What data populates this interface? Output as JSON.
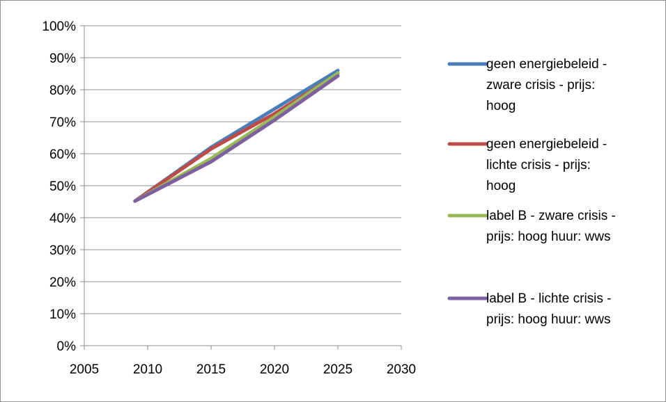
{
  "chart_data": {
    "type": "line",
    "x_axis": {
      "min": 2005,
      "max": 2030,
      "ticks": [
        2005,
        2010,
        2015,
        2020,
        2025,
        2030
      ],
      "tick_labels": [
        "2005",
        "2010",
        "2015",
        "2020",
        "2025",
        "2030"
      ]
    },
    "y_axis": {
      "min": 0,
      "max": 1,
      "ticks": [
        0,
        0.1,
        0.2,
        0.3,
        0.4,
        0.5,
        0.6,
        0.7,
        0.8,
        0.9,
        1
      ],
      "tick_labels": [
        "0%",
        "10%",
        "20%",
        "30%",
        "40%",
        "50%",
        "60%",
        "70%",
        "80%",
        "90%",
        "100%"
      ]
    },
    "grid": true,
    "legend_position": "right",
    "series": [
      {
        "name": "geen energiebeleid - zware crisis - prijs: hoog",
        "legend_lines": [
          "geen energiebeleid -",
          "zware crisis - prijs:",
          "hoog"
        ],
        "color": "#4a7ebb",
        "x": [
          2009,
          2015,
          2020,
          2025
        ],
        "y": [
          0.452,
          0.62,
          0.74,
          0.86
        ]
      },
      {
        "name": "geen energiebeleid - lichte crisis - prijs: hoog",
        "legend_lines": [
          "geen energiebeleid -",
          "lichte crisis - prijs:",
          "hoog"
        ],
        "color": "#be4b48",
        "x": [
          2009,
          2015,
          2020,
          2025
        ],
        "y": [
          0.452,
          0.615,
          0.725,
          0.85
        ]
      },
      {
        "name": "label B - zware crisis - prijs: hoog huur: wws",
        "legend_lines": [
          "label B - zware crisis -",
          "prijs: hoog  huur: wws"
        ],
        "color": "#98b954",
        "x": [
          2009,
          2015,
          2020,
          2025
        ],
        "y": [
          0.452,
          0.585,
          0.715,
          0.852
        ]
      },
      {
        "name": "label B - lichte crisis - prijs: hoog huur: wws",
        "legend_lines": [
          "label B - lichte crisis -",
          "prijs: hoog  huur: wws"
        ],
        "color": "#7d60a0",
        "x": [
          2009,
          2015,
          2020,
          2025
        ],
        "y": [
          0.452,
          0.575,
          0.705,
          0.843
        ]
      }
    ]
  }
}
